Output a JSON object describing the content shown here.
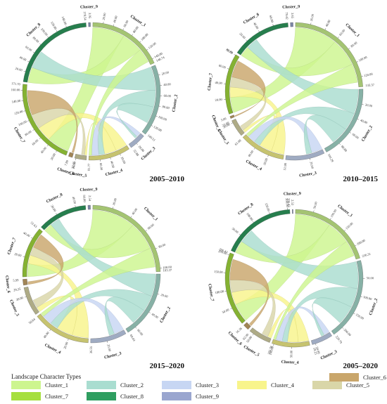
{
  "legend": {
    "title": "Landscape Character Types",
    "items": [
      {
        "label": "Cluster_1",
        "color": "#cdf58f"
      },
      {
        "label": "Cluster_2",
        "color": "#a9ddd0"
      },
      {
        "label": "Cluster_3",
        "color": "#c7d6f3"
      },
      {
        "label": "Cluster_4",
        "color": "#f8f48b"
      },
      {
        "label": "Cluster_5",
        "color": "#d9d6a8"
      },
      {
        "label": "Cluster_6",
        "color": "#c9a66b"
      },
      {
        "label": "Cluster_7",
        "color": "#a6df3f"
      },
      {
        "label": "Cluster_8",
        "color": "#2f9e60"
      },
      {
        "label": "Cluster_9",
        "color": "#9aa6cf"
      }
    ]
  },
  "chart_data": [
    {
      "type": "chord",
      "title": "2005–2010",
      "sectors": [
        {
          "name": "Cluster_1",
          "ticks": [
            "20.00",
            "40.00",
            "60.00",
            "80.00",
            "100.00",
            "120.00",
            "140.00"
          ],
          "end_label": "148.74"
        },
        {
          "name": "Cluster_2",
          "ticks": [
            "20.00",
            "40.00",
            "60.00",
            "80.00",
            "100.00",
            "120.00"
          ],
          "end_label": "140.51"
        },
        {
          "name": "Cluster_3",
          "ticks": [
            "20.00"
          ],
          "end_label": "32.88"
        },
        {
          "name": "Cluster_4",
          "ticks": [
            "20.00",
            "40.00",
            "60.00"
          ],
          "end_label": "81.77"
        },
        {
          "name": "Cluster_5",
          "ticks": [
            "20.00"
          ],
          "end_label": "22.65"
        },
        {
          "name": "Cluster_6",
          "ticks": [],
          "end_label": "7.89"
        },
        {
          "name": "Cluster_7",
          "ticks": [
            "20.00",
            "40.00",
            "60.00",
            "80.00",
            "100.00",
            "120.00",
            "140.00",
            "160.00"
          ],
          "end_label": "171.70"
        },
        {
          "name": "Cluster_8",
          "ticks": [
            "20.00",
            "40.00",
            "60.00",
            "80.00",
            "100.00",
            "120.00",
            "140.00"
          ],
          "end_label": "178.54"
        },
        {
          "name": "Cluster_9",
          "ticks": [],
          "end_label": "3.95"
        }
      ]
    },
    {
      "type": "chord",
      "title": "2010–2015",
      "sectors": [
        {
          "name": "Cluster_1",
          "ticks": [
            "20.00",
            "40.00",
            "60.00",
            "80.00",
            "100.00",
            "120.00"
          ],
          "end_label": "133.37"
        },
        {
          "name": "Cluster_2",
          "ticks": [
            "20.00",
            "40.00",
            "60.00",
            "80.00"
          ],
          "end_label": "100.29"
        },
        {
          "name": "Cluster_3",
          "ticks": [
            "20.00"
          ],
          "end_label": "51.98"
        },
        {
          "name": "Cluster_4",
          "ticks": [
            "20.00",
            "40.00"
          ],
          "end_label": "61.08"
        },
        {
          "name": "Cluster_5",
          "ticks": [
            "20.00"
          ],
          "end_label": "23.00"
        },
        {
          "name": "Cluster_6",
          "ticks": [],
          "end_label": "3.00"
        },
        {
          "name": "Cluster_7",
          "ticks": [
            "20.00",
            "40.00",
            "60.00",
            "80.00"
          ],
          "end_label": "80.89"
        },
        {
          "name": "Cluster_8",
          "ticks": [
            "20.00",
            "40.00",
            "60.00"
          ],
          "end_label": "79.42"
        },
        {
          "name": "Cluster_9",
          "ticks": [],
          "end_label": "3.65"
        }
      ]
    },
    {
      "type": "chord",
      "title": "2015–2020",
      "sectors": [
        {
          "name": "Cluster_1",
          "ticks": [
            "20.00",
            "40.00",
            "60.00",
            "80.00",
            "100.00"
          ],
          "end_label": "103.37"
        },
        {
          "name": "Cluster_2",
          "ticks": [
            "20.00",
            "40.00",
            "60.00"
          ],
          "end_label": "69.04"
        },
        {
          "name": "Cluster_3",
          "ticks": [
            "20.00"
          ],
          "end_label": "36.55"
        },
        {
          "name": "Cluster_4",
          "ticks": [
            "20.00",
            "40.00"
          ],
          "end_label": "58.64"
        },
        {
          "name": "Cluster_5",
          "ticks": [
            "20.00"
          ],
          "end_label": "29.25"
        },
        {
          "name": "Cluster_6",
          "ticks": [],
          "end_label": "5.99"
        },
        {
          "name": "Cluster_7",
          "ticks": [
            "20.00",
            "40.00"
          ],
          "end_label": "51.63"
        },
        {
          "name": "Cluster_8",
          "ticks": [
            "20.00",
            "40.00"
          ],
          "end_label": "50.00"
        },
        {
          "name": "Cluster_9",
          "ticks": [],
          "end_label": "2.54"
        }
      ]
    },
    {
      "type": "chord",
      "title": "2005–2020",
      "sectors": [
        {
          "name": "Cluster_1",
          "ticks": [
            "50.00",
            "100.00",
            "150.00",
            "200.00"
          ],
          "end_label": "236.31"
        },
        {
          "name": "Cluster_2",
          "ticks": [
            "50.00",
            "100.00",
            "150.00",
            "200.00"
          ],
          "end_label": "229.79"
        },
        {
          "name": "Cluster_3",
          "ticks": [
            "50.00"
          ],
          "end_label": "59.25"
        },
        {
          "name": "Cluster_4",
          "ticks": [
            "50.00",
            "100.00"
          ],
          "end_label": "105.76"
        },
        {
          "name": "Cluster_5",
          "ticks": [
            "50.00"
          ],
          "end_label": "62.90"
        },
        {
          "name": "Cluster_6",
          "ticks": [],
          "end_label": "16.36"
        },
        {
          "name": "Cluster_7",
          "ticks": [
            "50.00",
            "100.00",
            "150.00",
            "200.00"
          ],
          "end_label": "206.43"
        },
        {
          "name": "Cluster_8",
          "ticks": [
            "50.00",
            "100.00",
            "150.00",
            "200.00"
          ],
          "end_label": "206.43"
        },
        {
          "name": "Cluster_9",
          "ticks": [],
          "end_label": "2.53"
        }
      ]
    }
  ]
}
